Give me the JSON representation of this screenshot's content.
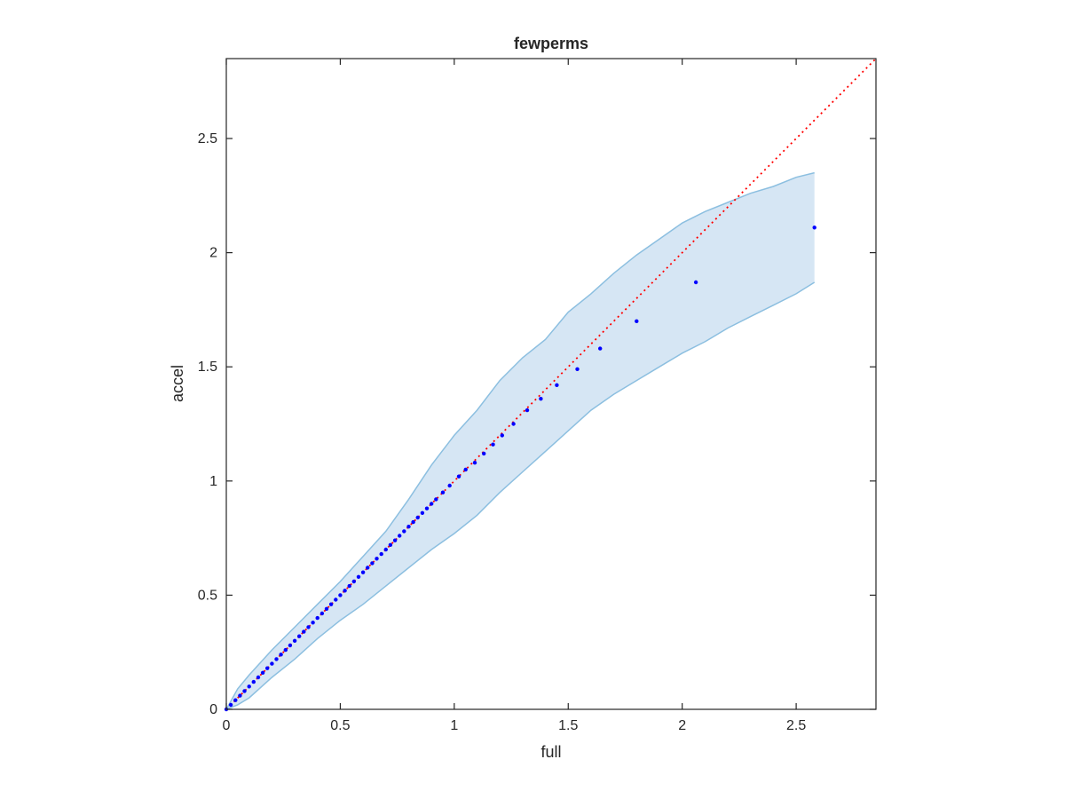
{
  "chart_data": {
    "type": "scatter",
    "title": "fewperms",
    "xlabel": "full",
    "ylabel": "accel",
    "xlim": [
      0,
      2.85
    ],
    "ylim": [
      0,
      2.85
    ],
    "xticks": [
      "0",
      "0.5",
      "1",
      "1.5",
      "2",
      "2.5"
    ],
    "yticks": [
      "0",
      "0.5",
      "1",
      "1.5",
      "2",
      "2.5"
    ],
    "grid": false,
    "colors": {
      "points": "#0000ff",
      "reference_line": "#ff0000",
      "band_fill": "#d6e6f4",
      "band_edge": "#8cbfe0",
      "axes": "#262626"
    },
    "reference_line": {
      "style": "dotted",
      "from": [
        0,
        0
      ],
      "to": [
        2.85,
        2.85
      ]
    },
    "band": {
      "x": [
        0,
        0.05,
        0.1,
        0.2,
        0.3,
        0.4,
        0.5,
        0.6,
        0.7,
        0.8,
        0.9,
        1.0,
        1.1,
        1.2,
        1.3,
        1.4,
        1.5,
        1.6,
        1.7,
        1.8,
        1.9,
        2.0,
        2.1,
        2.2,
        2.3,
        2.4,
        2.5,
        2.58
      ],
      "upper": [
        0,
        0.09,
        0.15,
        0.26,
        0.36,
        0.46,
        0.56,
        0.67,
        0.78,
        0.92,
        1.07,
        1.2,
        1.31,
        1.44,
        1.54,
        1.62,
        1.74,
        1.82,
        1.91,
        1.99,
        2.06,
        2.13,
        2.18,
        2.22,
        2.26,
        2.29,
        2.33,
        2.35
      ],
      "lower": [
        0,
        0.02,
        0.05,
        0.14,
        0.22,
        0.31,
        0.39,
        0.46,
        0.54,
        0.62,
        0.7,
        0.77,
        0.85,
        0.95,
        1.04,
        1.13,
        1.22,
        1.31,
        1.38,
        1.44,
        1.5,
        1.56,
        1.61,
        1.67,
        1.72,
        1.77,
        1.82,
        1.87
      ]
    },
    "series": [
      {
        "x": [
          0.0,
          0.02,
          0.04,
          0.06,
          0.08,
          0.1,
          0.12,
          0.14,
          0.16,
          0.18,
          0.2,
          0.22,
          0.24,
          0.26,
          0.28,
          0.3,
          0.32,
          0.34,
          0.36,
          0.38,
          0.4,
          0.42,
          0.44,
          0.46,
          0.48,
          0.5,
          0.52,
          0.54,
          0.56,
          0.58,
          0.6,
          0.62,
          0.64,
          0.66,
          0.68,
          0.7,
          0.72,
          0.74,
          0.76,
          0.78,
          0.8,
          0.82,
          0.84,
          0.86,
          0.88,
          0.9,
          0.92,
          0.95,
          0.98,
          1.02,
          1.05,
          1.09,
          1.13,
          1.17,
          1.21,
          1.26,
          1.32,
          1.38,
          1.45,
          1.54,
          1.64,
          1.8,
          2.06,
          2.58
        ],
        "y": [
          0.0,
          0.02,
          0.04,
          0.06,
          0.08,
          0.1,
          0.12,
          0.14,
          0.16,
          0.18,
          0.2,
          0.22,
          0.24,
          0.26,
          0.28,
          0.3,
          0.32,
          0.34,
          0.36,
          0.38,
          0.4,
          0.42,
          0.44,
          0.46,
          0.48,
          0.5,
          0.52,
          0.54,
          0.56,
          0.58,
          0.6,
          0.62,
          0.64,
          0.66,
          0.68,
          0.7,
          0.72,
          0.74,
          0.76,
          0.78,
          0.8,
          0.82,
          0.84,
          0.86,
          0.88,
          0.9,
          0.92,
          0.95,
          0.98,
          1.02,
          1.05,
          1.08,
          1.12,
          1.16,
          1.2,
          1.25,
          1.31,
          1.36,
          1.42,
          1.49,
          1.58,
          1.7,
          1.87,
          2.11
        ]
      }
    ]
  }
}
